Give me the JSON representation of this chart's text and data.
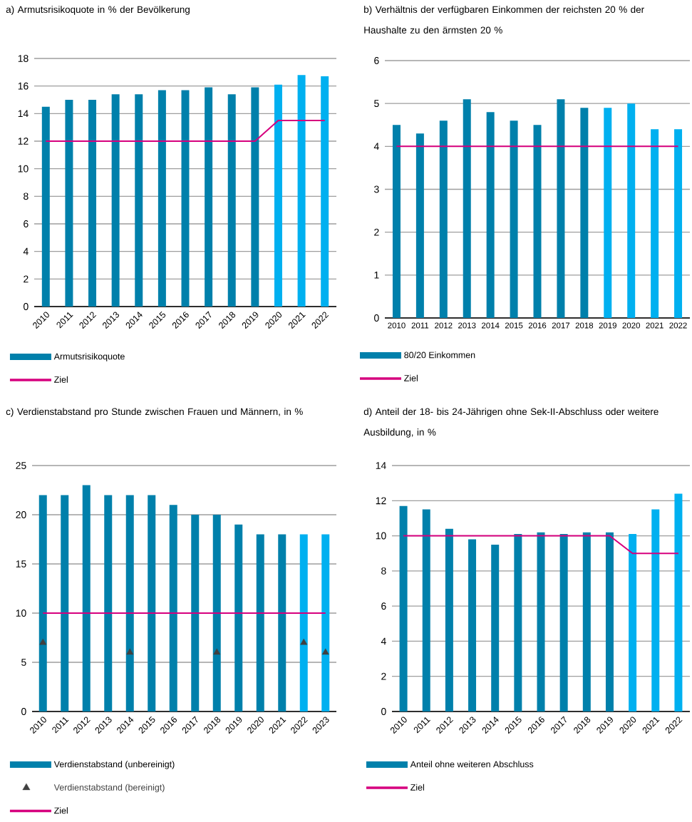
{
  "chart_data": [
    {
      "type": "bar",
      "title": "a) Armutsrisikoquote in % der Bevölkerung",
      "categories": [
        "2010",
        "2011",
        "2012",
        "2013",
        "2014",
        "2015",
        "2016",
        "2017",
        "2018",
        "2019",
        "2020",
        "2021",
        "2022"
      ],
      "series": [
        {
          "name": "Armutsrisikoquote",
          "type": "bar",
          "color": "#0080ab",
          "colors": [
            "#0080ab",
            "#0080ab",
            "#0080ab",
            "#0080ab",
            "#0080ab",
            "#0080ab",
            "#0080ab",
            "#0080ab",
            "#0080ab",
            "#0080ab",
            "#00b0f0",
            "#00b0f0",
            "#00b0f0"
          ],
          "values": [
            14.5,
            15.0,
            15.0,
            15.4,
            15.4,
            15.7,
            15.7,
            15.9,
            15.4,
            15.9,
            16.1,
            16.8,
            16.7
          ]
        },
        {
          "name": "Ziel",
          "type": "line",
          "color": "#d6007e",
          "values": [
            12,
            12,
            12,
            12,
            12,
            12,
            12,
            12,
            12,
            12,
            13.5,
            13.5,
            13.5
          ]
        }
      ],
      "ylim": [
        0,
        18
      ],
      "yticks": [
        0,
        2,
        4,
        6,
        8,
        10,
        12,
        14,
        16,
        18
      ],
      "grid": "y",
      "legend": "bottom"
    },
    {
      "type": "bar",
      "title": "b) Verhältnis der verfügbaren Einkommen der reichsten 20 % der Haushalte zu den ärmsten 20 %",
      "categories": [
        "2010",
        "2011",
        "2012",
        "2013",
        "2014",
        "2015",
        "2016",
        "2017",
        "2018",
        "2019",
        "2020",
        "2021",
        "2022"
      ],
      "series": [
        {
          "name": "80/20 Einkommen",
          "type": "bar",
          "color": "#0080ab",
          "colors": [
            "#0080ab",
            "#0080ab",
            "#0080ab",
            "#0080ab",
            "#0080ab",
            "#0080ab",
            "#0080ab",
            "#0080ab",
            "#0080ab",
            "#00b0f0",
            "#00b0f0",
            "#00b0f0",
            "#00b0f0"
          ],
          "values": [
            4.5,
            4.3,
            4.6,
            5.1,
            4.8,
            4.6,
            4.5,
            5.1,
            4.9,
            4.9,
            5.0,
            4.4,
            4.4
          ]
        },
        {
          "name": "Ziel",
          "type": "line",
          "color": "#d6007e",
          "values": [
            4,
            4,
            4,
            4,
            4,
            4,
            4,
            4,
            4,
            4,
            4,
            4,
            4
          ]
        }
      ],
      "ylim": [
        0,
        6
      ],
      "yticks": [
        0,
        1,
        2,
        3,
        4,
        5,
        6
      ],
      "grid": "y",
      "legend": "bottom"
    },
    {
      "type": "bar",
      "title": "c) Verdienstabstand pro Stunde zwischen Frauen und Männern, in %",
      "categories": [
        "2010",
        "2011",
        "2012",
        "2013",
        "2014",
        "2015",
        "2016",
        "2017",
        "2018",
        "2019",
        "2020",
        "2021",
        "2022",
        "2023"
      ],
      "series": [
        {
          "name": "Verdienstabstand (unbereinigt)",
          "type": "bar",
          "color": "#0080ab",
          "colors": [
            "#0080ab",
            "#0080ab",
            "#0080ab",
            "#0080ab",
            "#0080ab",
            "#0080ab",
            "#0080ab",
            "#0080ab",
            "#0080ab",
            "#0080ab",
            "#0080ab",
            "#0080ab",
            "#00b0f0",
            "#00b0f0"
          ],
          "values": [
            22,
            22,
            23,
            22,
            22,
            22,
            21,
            20,
            20,
            19,
            18,
            18,
            18,
            18
          ]
        },
        {
          "name": "Verdienstabstand (bereinigt)",
          "type": "scatter",
          "marker": "triangle",
          "color": "#404040",
          "values": [
            7,
            null,
            null,
            null,
            6,
            null,
            null,
            null,
            6,
            null,
            null,
            null,
            7,
            6
          ]
        },
        {
          "name": "Ziel",
          "type": "line",
          "color": "#d6007e",
          "values": [
            10,
            10,
            10,
            10,
            10,
            10,
            10,
            10,
            10,
            10,
            10,
            10,
            10,
            10
          ]
        }
      ],
      "ylim": [
        0,
        25
      ],
      "yticks": [
        0,
        5,
        10,
        15,
        20,
        25
      ],
      "grid": "y",
      "legend": "bottom"
    },
    {
      "type": "bar",
      "title": "d) Anteil der 18- bis 24-Jährigen ohne Sek-II-Abschluss oder weitere Ausbildung, in %",
      "categories": [
        "2010",
        "2011",
        "2012",
        "2013",
        "2014",
        "2015",
        "2016",
        "2017",
        "2018",
        "2019",
        "2020",
        "2021",
        "2022"
      ],
      "series": [
        {
          "name": "Anteil ohne weiteren Abschluss",
          "type": "bar",
          "color": "#0080ab",
          "colors": [
            "#0080ab",
            "#0080ab",
            "#0080ab",
            "#0080ab",
            "#0080ab",
            "#0080ab",
            "#0080ab",
            "#0080ab",
            "#0080ab",
            "#0080ab",
            "#00b0f0",
            "#00b0f0",
            "#00b0f0"
          ],
          "values": [
            11.7,
            11.5,
            10.4,
            9.8,
            9.5,
            10.1,
            10.2,
            10.1,
            10.2,
            10.2,
            10.1,
            11.5,
            12.4
          ]
        },
        {
          "name": "Ziel",
          "type": "line",
          "color": "#d6007e",
          "values": [
            10,
            10,
            10,
            10,
            10,
            10,
            10,
            10,
            10,
            10,
            9,
            9,
            9
          ]
        }
      ],
      "ylim": [
        0,
        14
      ],
      "yticks": [
        0,
        2,
        4,
        6,
        8,
        10,
        12,
        14
      ],
      "grid": "y",
      "legend": "bottom"
    }
  ]
}
